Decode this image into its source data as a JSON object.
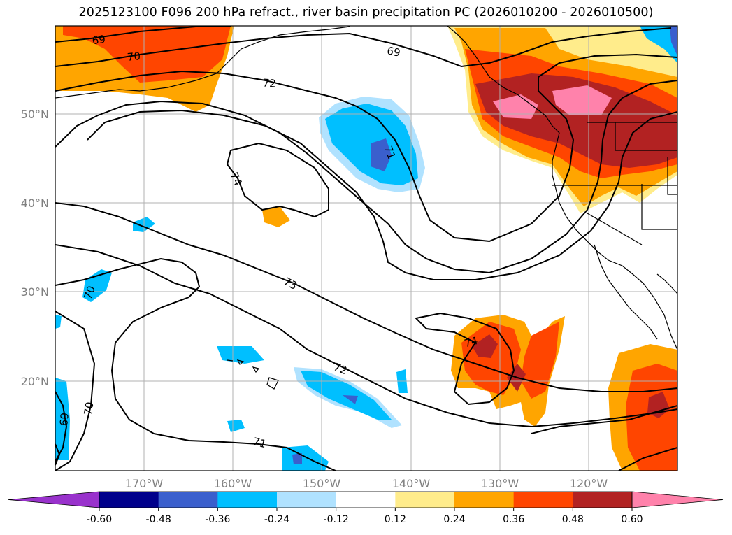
{
  "title": "2025123100 F096 200 hPa refract., river basin precipitation PC (2026010200 - 2026010500)",
  "map": {
    "lon_range": [
      -180,
      -110
    ],
    "lat_range": [
      10,
      60
    ],
    "lat_ticks": [
      {
        "lat": 50,
        "label": "50°N"
      },
      {
        "lat": 40,
        "label": "40°N"
      },
      {
        "lat": 30,
        "label": "30°N"
      },
      {
        "lat": 20,
        "label": "20°N"
      }
    ],
    "lon_ticks": [
      {
        "lon": -170,
        "label": "170°W"
      },
      {
        "lon": -160,
        "label": "160°W"
      },
      {
        "lon": -150,
        "label": "150°W"
      },
      {
        "lon": -140,
        "label": "140°W"
      },
      {
        "lon": -130,
        "label": "130°W"
      },
      {
        "lon": -120,
        "label": "120°W"
      }
    ],
    "contour_labels": [
      "69",
      "70",
      "72",
      "69",
      "74",
      "71",
      "73",
      "70",
      "72",
      "74",
      "70",
      "69",
      "71"
    ]
  },
  "colorbar": {
    "levels": [
      "-0.60",
      "-0.48",
      "-0.36",
      "-0.24",
      "-0.12",
      "0.12",
      "0.24",
      "0.36",
      "0.48",
      "0.60"
    ],
    "colors": [
      "#9932cc",
      "#00008b",
      "#3a5fcd",
      "#00bfff",
      "#b0e2ff",
      "#ffffff",
      "#ffec8b",
      "#ffa500",
      "#ff4500",
      "#b22222",
      "#ff82ab"
    ]
  }
}
